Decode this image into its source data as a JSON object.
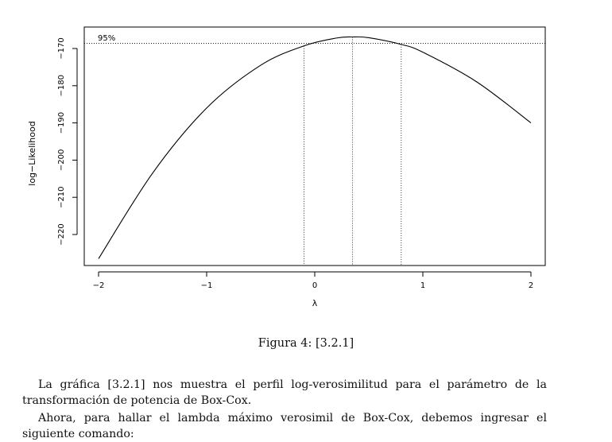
{
  "chart_data": {
    "type": "line",
    "xlabel": "λ",
    "ylabel": "log−Likelihood",
    "xlim": [
      -2,
      2
    ],
    "ylim": [
      -229,
      -165
    ],
    "x_ticks": [
      -2,
      -1,
      0,
      1,
      2
    ],
    "x_tick_labels": [
      "−2",
      "−1",
      "0",
      "1",
      "2"
    ],
    "y_ticks": [
      -170,
      -180,
      -190,
      -200,
      -210,
      -220
    ],
    "y_tick_labels": [
      "−170",
      "−180",
      "−190",
      "−200",
      "−210",
      "−220"
    ],
    "series": [
      {
        "x": [
          -2.0,
          -1.5,
          -1.0,
          -0.5,
          -0.1,
          0.2,
          0.35,
          0.5,
          0.8,
          1.0,
          1.5,
          2.0
        ],
        "y": [
          -226.5,
          -203.5,
          -186.0,
          -174.5,
          -169.3,
          -167.2,
          -166.9,
          -167.1,
          -168.9,
          -171.0,
          -179.0,
          -190.0
        ]
      }
    ],
    "ci_label": "95%",
    "ci_level_y": -168.6,
    "ci_lines_x": [
      -0.1,
      0.35,
      0.8
    ],
    "grid": false
  },
  "caption": "Figura 4: [3.2.1]",
  "paragraph1": "La gráfica [3.2.1] nos muestra el perfil log-verosimilitud para el parámetro de la transformación de potencia de Box-Cox.",
  "paragraph2": "Ahora, para hallar el lambda máximo verosimil de Box-Cox, debemos ingresar el siguiente comando:"
}
